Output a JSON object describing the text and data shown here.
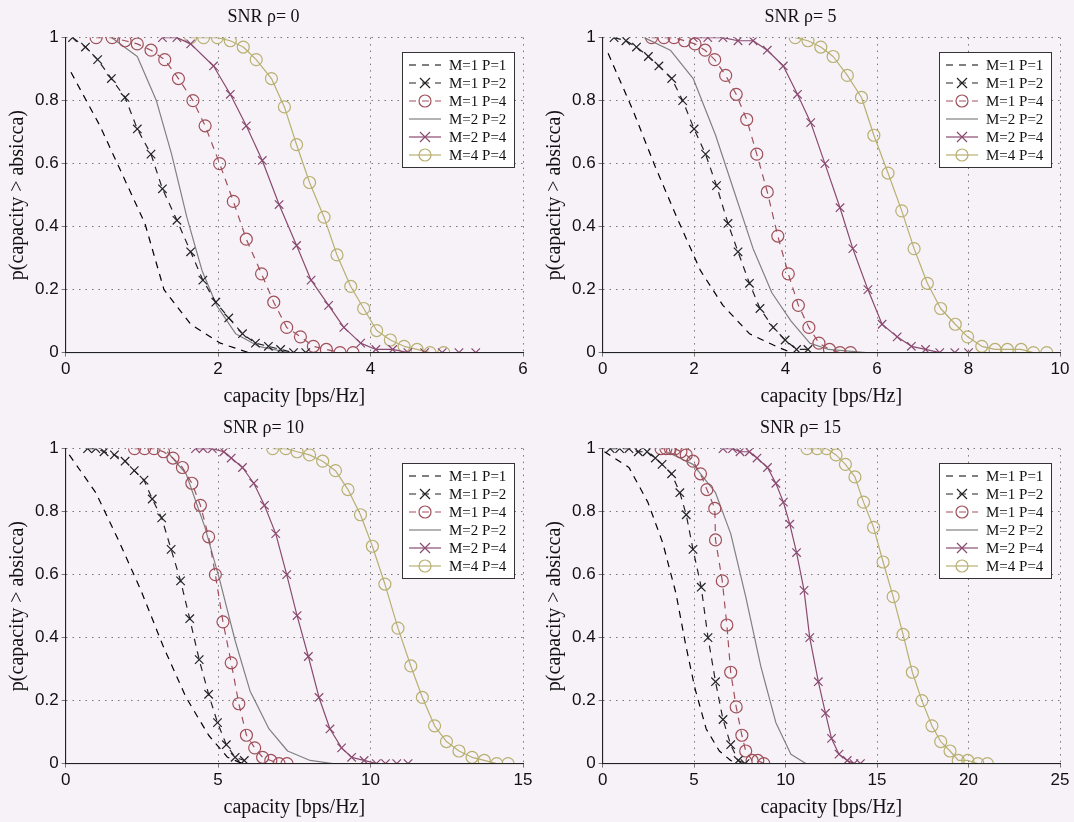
{
  "chart_data": [
    {
      "type": "line",
      "title": "SNR ρ= 0",
      "xlabel": "capacity [bps/Hz]",
      "ylabel": "p(capacity > absicca)",
      "xlim": [
        0,
        6
      ],
      "xticks": [
        0,
        2,
        4,
        6
      ],
      "ylim": [
        0,
        1
      ],
      "yticks": [
        0,
        0.2,
        0.4,
        0.6,
        0.8,
        1
      ],
      "grid": true,
      "legend": "top right",
      "series": [
        {
          "name": "M=1 P=1",
          "color": "#000000",
          "marker": "none",
          "line_style": "dashed",
          "x": [
            0.07,
            0.45,
            1.04,
            1.29,
            1.64,
            2.03,
            2.4
          ],
          "values": [
            0.89,
            0.72,
            0.41,
            0.2,
            0.09,
            0.03,
            0
          ]
        },
        {
          "name": "M=1 P=2",
          "color": "#222222",
          "marker": "cross",
          "line_style": "dashed",
          "x": [
            0.09,
            0.26,
            0.42,
            0.6,
            0.78,
            0.94,
            1.12,
            1.27,
            1.46,
            1.64,
            1.8,
            1.97,
            2.14,
            2.32,
            2.49,
            2.66,
            2.82,
            2.99,
            3.15
          ],
          "values": [
            1.0,
            0.97,
            0.93,
            0.87,
            0.81,
            0.71,
            0.63,
            0.52,
            0.42,
            0.32,
            0.23,
            0.16,
            0.11,
            0.06,
            0.03,
            0.02,
            0.01,
            0,
            0
          ]
        },
        {
          "name": "M=1 P=4",
          "color": "#a0505a",
          "marker": "circle",
          "line_style": "dashed",
          "x": [
            0.4,
            0.61,
            0.78,
            0.94,
            1.12,
            1.3,
            1.48,
            1.67,
            1.83,
            2.02,
            2.2,
            2.37,
            2.57,
            2.73,
            2.9,
            3.08,
            3.25,
            3.42,
            3.6,
            3.77
          ],
          "values": [
            1.0,
            1.0,
            0.99,
            0.98,
            0.96,
            0.93,
            0.87,
            0.8,
            0.72,
            0.6,
            0.48,
            0.36,
            0.25,
            0.16,
            0.08,
            0.05,
            0.02,
            0.01,
            0,
            0
          ]
        },
        {
          "name": "M=2 P=2",
          "color": "#808080",
          "marker": "none",
          "line_style": "solid",
          "x": [
            0.6,
            0.94,
            1.19,
            1.39,
            1.59,
            1.79,
            1.98,
            2.23,
            2.53,
            2.93,
            3.42
          ],
          "values": [
            1.0,
            0.94,
            0.8,
            0.63,
            0.43,
            0.26,
            0.15,
            0.06,
            0.02,
            0,
            0
          ]
        },
        {
          "name": "M=2 P=4",
          "color": "#8a4a70",
          "marker": "cross",
          "line_style": "solid",
          "x": [
            1.27,
            1.46,
            1.64,
            1.94,
            2.16,
            2.37,
            2.58,
            2.8,
            3.03,
            3.22,
            3.45,
            3.65,
            3.87,
            4.07,
            4.29,
            4.49,
            4.71,
            4.94,
            5.16,
            5.38
          ],
          "values": [
            1.0,
            1.0,
            0.98,
            0.91,
            0.82,
            0.72,
            0.61,
            0.47,
            0.34,
            0.23,
            0.15,
            0.08,
            0.03,
            0.01,
            0.01,
            0,
            0,
            0,
            0,
            0
          ]
        },
        {
          "name": "M=4 P=4",
          "color": "#b8b070",
          "marker": "circle",
          "line_style": "solid",
          "x": [
            1.64,
            1.81,
            1.99,
            2.16,
            2.33,
            2.5,
            2.7,
            2.87,
            3.03,
            3.2,
            3.39,
            3.56,
            3.74,
            3.91,
            4.08,
            4.26,
            4.44,
            4.61,
            4.78,
            4.96
          ],
          "values": [
            1.0,
            1.0,
            1.0,
            0.99,
            0.97,
            0.93,
            0.87,
            0.78,
            0.66,
            0.54,
            0.43,
            0.31,
            0.21,
            0.14,
            0.07,
            0.04,
            0.02,
            0.01,
            0,
            0
          ]
        }
      ]
    },
    {
      "type": "line",
      "title": "SNR ρ= 5",
      "xlabel": "capacity [bps/Hz]",
      "ylabel": "p(capacity > absicca)",
      "xlim": [
        0,
        10
      ],
      "xticks": [
        0,
        2,
        4,
        6,
        8,
        10
      ],
      "ylim": [
        0,
        1
      ],
      "yticks": [
        0,
        0.2,
        0.4,
        0.6,
        0.8,
        1
      ],
      "grid": true,
      "legend": "top right",
      "series": [
        {
          "name": "M=1 P=1",
          "color": "#000000",
          "marker": "none",
          "line_style": "dashed",
          "x": [
            0.12,
            0.66,
            1.15,
            1.65,
            2.14,
            2.63,
            3.21,
            3.79,
            4.12
          ],
          "values": [
            0.95,
            0.77,
            0.59,
            0.42,
            0.26,
            0.15,
            0.06,
            0.02,
            0
          ]
        },
        {
          "name": "M=1 P=2",
          "color": "#222222",
          "marker": "cross",
          "line_style": "dashed",
          "x": [
            0.25,
            0.51,
            0.74,
            1.0,
            1.23,
            1.51,
            1.75,
            2.0,
            2.25,
            2.49,
            2.74,
            2.96,
            3.21,
            3.44,
            3.73,
            3.99,
            4.24,
            4.49
          ],
          "values": [
            1.0,
            0.99,
            0.97,
            0.94,
            0.91,
            0.87,
            0.8,
            0.71,
            0.63,
            0.53,
            0.41,
            0.32,
            0.22,
            0.14,
            0.08,
            0.04,
            0.01,
            0.01
          ]
        },
        {
          "name": "M=1 P=4",
          "color": "#a0505a",
          "marker": "circle",
          "line_style": "dashed",
          "x": [
            1.07,
            1.34,
            1.56,
            1.79,
            2.02,
            2.24,
            2.45,
            2.69,
            2.92,
            3.15,
            3.37,
            3.6,
            3.83,
            4.06,
            4.28,
            4.51,
            4.73,
            4.96,
            5.19,
            5.42
          ],
          "values": [
            1.0,
            1.0,
            1.0,
            0.99,
            0.98,
            0.96,
            0.93,
            0.88,
            0.82,
            0.74,
            0.63,
            0.51,
            0.37,
            0.25,
            0.15,
            0.08,
            0.03,
            0.01,
            0,
            0
          ]
        },
        {
          "name": "M=2 P=2",
          "color": "#808080",
          "marker": "none",
          "line_style": "solid",
          "x": [
            0.91,
            1.48,
            1.98,
            2.47,
            2.88,
            3.29,
            3.7,
            4.12,
            4.53,
            4.94,
            5.76
          ],
          "values": [
            1.0,
            0.96,
            0.87,
            0.69,
            0.51,
            0.33,
            0.19,
            0.1,
            0.03,
            0.01,
            0
          ]
        },
        {
          "name": "M=2 P=4",
          "color": "#8a4a70",
          "marker": "cross",
          "line_style": "solid",
          "x": [
            1.98,
            2.3,
            2.63,
            2.96,
            3.29,
            3.6,
            3.95,
            4.26,
            4.55,
            4.86,
            5.19,
            5.47,
            5.8,
            6.11,
            6.44,
            6.75,
            7.06,
            7.37,
            7.7,
            8.0
          ],
          "values": [
            1.0,
            1.0,
            1.0,
            0.99,
            0.99,
            0.96,
            0.91,
            0.82,
            0.73,
            0.6,
            0.46,
            0.33,
            0.2,
            0.09,
            0.05,
            0.02,
            0.01,
            0,
            0,
            0
          ]
        },
        {
          "name": "M=4 P=4",
          "color": "#b8b070",
          "marker": "circle",
          "line_style": "solid",
          "x": [
            4.21,
            4.49,
            4.77,
            5.04,
            5.35,
            5.66,
            5.93,
            6.24,
            6.54,
            6.81,
            7.1,
            7.39,
            7.71,
            7.98,
            8.29,
            8.58,
            8.85,
            9.15,
            9.42,
            9.71
          ],
          "values": [
            1.0,
            0.99,
            0.97,
            0.94,
            0.88,
            0.81,
            0.69,
            0.57,
            0.45,
            0.33,
            0.22,
            0.14,
            0.09,
            0.05,
            0.02,
            0.01,
            0.01,
            0.01,
            0,
            0
          ]
        }
      ]
    },
    {
      "type": "line",
      "title": "SNR ρ= 10",
      "xlabel": "capacity [bps/Hz]",
      "ylabel": "p(capacity > absicca)",
      "xlim": [
        0,
        15
      ],
      "xticks": [
        0,
        5,
        10,
        15
      ],
      "ylim": [
        0,
        1
      ],
      "yticks": [
        0,
        0.2,
        0.4,
        0.6,
        0.8,
        1
      ],
      "grid": true,
      "legend": "top right",
      "series": [
        {
          "name": "M=1 P=1",
          "color": "#000000",
          "marker": "none",
          "line_style": "dashed",
          "x": [
            0.12,
            0.99,
            1.73,
            2.47,
            3.21,
            3.95,
            4.69,
            5.31,
            5.8
          ],
          "values": [
            0.98,
            0.86,
            0.71,
            0.55,
            0.37,
            0.21,
            0.09,
            0.02,
            0
          ]
        },
        {
          "name": "M=1 P=2",
          "color": "#222222",
          "marker": "cross",
          "line_style": "dashed",
          "x": [
            0.72,
            0.99,
            1.26,
            1.6,
            1.95,
            2.25,
            2.57,
            2.84,
            3.15,
            3.46,
            3.77,
            4.07,
            4.38,
            4.69,
            4.98,
            5.27,
            5.56,
            5.86
          ],
          "values": [
            1.0,
            1.0,
            0.99,
            0.98,
            0.96,
            0.93,
            0.9,
            0.84,
            0.78,
            0.68,
            0.58,
            0.46,
            0.33,
            0.22,
            0.13,
            0.06,
            0.02,
            0.01
          ]
        },
        {
          "name": "M=1 P=4",
          "color": "#a0505a",
          "marker": "circle",
          "line_style": "dashed",
          "x": [
            2.26,
            2.59,
            2.9,
            3.21,
            3.52,
            3.83,
            4.14,
            4.42,
            4.69,
            4.91,
            5.16,
            5.43,
            5.68,
            5.93,
            6.2,
            6.46,
            6.73,
            7.0,
            7.26
          ],
          "values": [
            1.0,
            1.0,
            1.0,
            0.99,
            0.97,
            0.94,
            0.89,
            0.82,
            0.72,
            0.6,
            0.45,
            0.32,
            0.19,
            0.09,
            0.05,
            0.02,
            0.01,
            0,
            0
          ]
        },
        {
          "name": "M=2 P=2",
          "color": "#808080",
          "marker": "none",
          "line_style": "solid",
          "x": [
            3.33,
            3.95,
            4.57,
            5.06,
            5.56,
            6.05,
            6.67,
            7.28,
            8.02,
            8.77
          ],
          "values": [
            0.99,
            0.92,
            0.75,
            0.58,
            0.39,
            0.23,
            0.11,
            0.04,
            0.01,
            0
          ]
        },
        {
          "name": "M=2 P=4",
          "color": "#8a4a70",
          "marker": "cross",
          "line_style": "solid",
          "x": [
            4.26,
            4.51,
            4.81,
            5.19,
            5.43,
            5.8,
            6.17,
            6.52,
            6.89,
            7.25,
            7.59,
            7.96,
            8.31,
            8.67,
            9.05,
            9.38,
            9.79,
            10.19,
            10.49,
            10.86,
            11.23
          ],
          "values": [
            1.0,
            1.0,
            1.0,
            0.99,
            0.97,
            0.94,
            0.89,
            0.82,
            0.73,
            0.6,
            0.47,
            0.34,
            0.21,
            0.11,
            0.05,
            0.02,
            0.01,
            0,
            0,
            0,
            0
          ]
        },
        {
          "name": "M=4 P=4",
          "color": "#b8b070",
          "marker": "circle",
          "line_style": "solid",
          "x": [
            6.79,
            7.22,
            7.59,
            8.0,
            8.43,
            8.85,
            9.26,
            9.67,
            10.06,
            10.47,
            10.9,
            11.32,
            11.7,
            12.1,
            12.49,
            12.9,
            13.33,
            13.73,
            14.14,
            14.51
          ],
          "values": [
            1.0,
            1.0,
            0.99,
            0.98,
            0.96,
            0.93,
            0.87,
            0.79,
            0.69,
            0.57,
            0.43,
            0.31,
            0.21,
            0.12,
            0.07,
            0.04,
            0.02,
            0.01,
            0,
            0
          ]
        }
      ]
    },
    {
      "type": "line",
      "title": "SNR ρ= 15",
      "xlabel": "capacity [bps/Hz]",
      "ylabel": "p(capacity > absicca)",
      "xlim": [
        0,
        25
      ],
      "xticks": [
        0,
        5,
        10,
        15,
        20,
        25
      ],
      "ylim": [
        0,
        1
      ],
      "yticks": [
        0,
        0.2,
        0.4,
        0.6,
        0.8,
        1
      ],
      "grid": true,
      "legend": "top right",
      "series": [
        {
          "name": "M=1 P=1",
          "color": "#000000",
          "marker": "none",
          "line_style": "dashed",
          "x": [
            0.1,
            1.44,
            2.47,
            3.29,
            4.01,
            4.53,
            5.04,
            5.66,
            6.38,
            7.0,
            7.41
          ],
          "values": [
            0.99,
            0.94,
            0.83,
            0.7,
            0.54,
            0.38,
            0.24,
            0.11,
            0.04,
            0.01,
            0
          ]
        },
        {
          "name": "M=1 P=2",
          "color": "#222222",
          "marker": "cross",
          "line_style": "dashed",
          "x": [
            0.41,
            0.93,
            1.44,
            1.95,
            2.43,
            2.88,
            3.25,
            3.77,
            4.22,
            4.57,
            4.94,
            5.39,
            5.76,
            6.17,
            6.58,
            7.0,
            7.41,
            7.78
          ],
          "values": [
            1.0,
            1.0,
            1.0,
            0.99,
            0.99,
            0.97,
            0.95,
            0.92,
            0.86,
            0.79,
            0.68,
            0.56,
            0.4,
            0.26,
            0.14,
            0.06,
            0.01,
            0
          ]
        },
        {
          "name": "M=1 P=4",
          "color": "#a0505a",
          "marker": "circle",
          "line_style": "dashed",
          "x": [
            3.19,
            3.46,
            3.7,
            3.97,
            4.28,
            4.57,
            4.94,
            5.35,
            5.7,
            6.13,
            6.17,
            6.54,
            6.79,
            7.0,
            7.3,
            7.61,
            7.82,
            8.17,
            8.48,
            8.81
          ],
          "values": [
            1.0,
            1.0,
            1.0,
            1.0,
            0.99,
            0.98,
            0.96,
            0.92,
            0.87,
            0.81,
            0.71,
            0.58,
            0.44,
            0.29,
            0.18,
            0.09,
            0.04,
            0.01,
            0.01,
            0
          ]
        },
        {
          "name": "M=2 P=2",
          "color": "#808080",
          "marker": "none",
          "line_style": "solid",
          "x": [
            3.5,
            4.94,
            6.17,
            7.0,
            7.82,
            8.64,
            9.47,
            10.29,
            11.11,
            12.35
          ],
          "values": [
            0.99,
            0.95,
            0.86,
            0.73,
            0.53,
            0.31,
            0.13,
            0.03,
            0,
            0
          ]
        },
        {
          "name": "M=2 P=4",
          "color": "#8a4a70",
          "marker": "cross",
          "line_style": "solid",
          "x": [
            6.58,
            7.1,
            7.51,
            8.02,
            8.44,
            9.01,
            9.47,
            9.88,
            10.23,
            10.6,
            11.01,
            11.32,
            11.79,
            12.18,
            12.51,
            12.92,
            13.37,
            13.74,
            14.09
          ],
          "values": [
            1.0,
            1.0,
            0.99,
            0.99,
            0.97,
            0.94,
            0.89,
            0.83,
            0.76,
            0.67,
            0.55,
            0.4,
            0.26,
            0.16,
            0.08,
            0.03,
            0.01,
            0,
            0
          ]
        },
        {
          "name": "M=4 P=4",
          "color": "#b8b070",
          "marker": "circle",
          "line_style": "solid",
          "x": [
            11.17,
            11.73,
            12.24,
            12.76,
            13.27,
            13.79,
            14.26,
            14.81,
            15.33,
            15.88,
            16.42,
            16.93,
            17.45,
            18.0,
            18.48,
            18.99,
            19.44,
            19.96,
            20.51,
            21.03
          ],
          "values": [
            1.0,
            1.0,
            1.0,
            0.98,
            0.95,
            0.91,
            0.83,
            0.75,
            0.64,
            0.53,
            0.41,
            0.29,
            0.2,
            0.12,
            0.07,
            0.04,
            0.01,
            0.01,
            0,
            0
          ]
        }
      ]
    }
  ]
}
